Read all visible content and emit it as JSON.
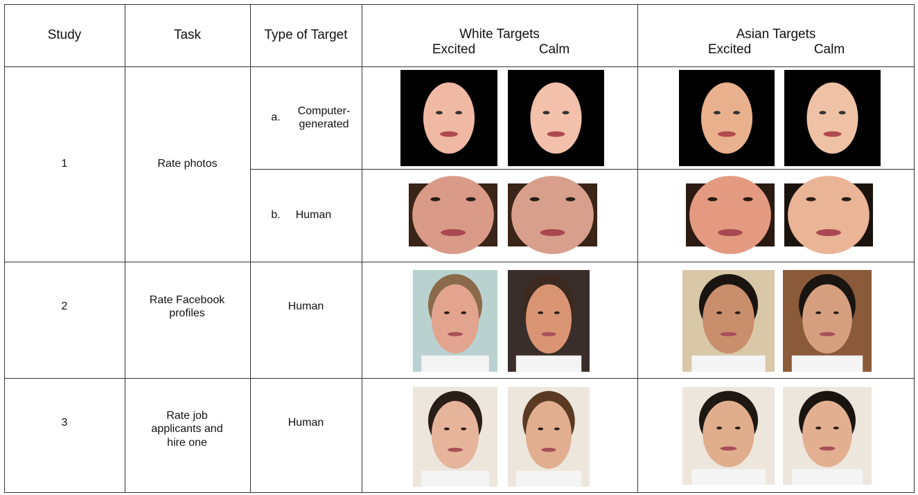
{
  "header": {
    "study": "Study",
    "task": "Task",
    "type": "Type of Target",
    "white": "White Targets",
    "asian": "Asian Targets",
    "white_excited": "Excited",
    "white_calm": "Calm",
    "asian_excited": "Excited",
    "asian_calm": "Calm"
  },
  "rows": [
    {
      "study": "1",
      "task": "Rate photos",
      "targets": [
        {
          "marker": "a.",
          "type": "Computer-generated"
        },
        {
          "marker": "b.",
          "type": "Human"
        }
      ]
    },
    {
      "study": "2",
      "task": "Rate Facebook profiles",
      "type": "Human"
    },
    {
      "study": "3",
      "task": "Rate job applicants and hire one",
      "type": "Human"
    }
  ]
}
